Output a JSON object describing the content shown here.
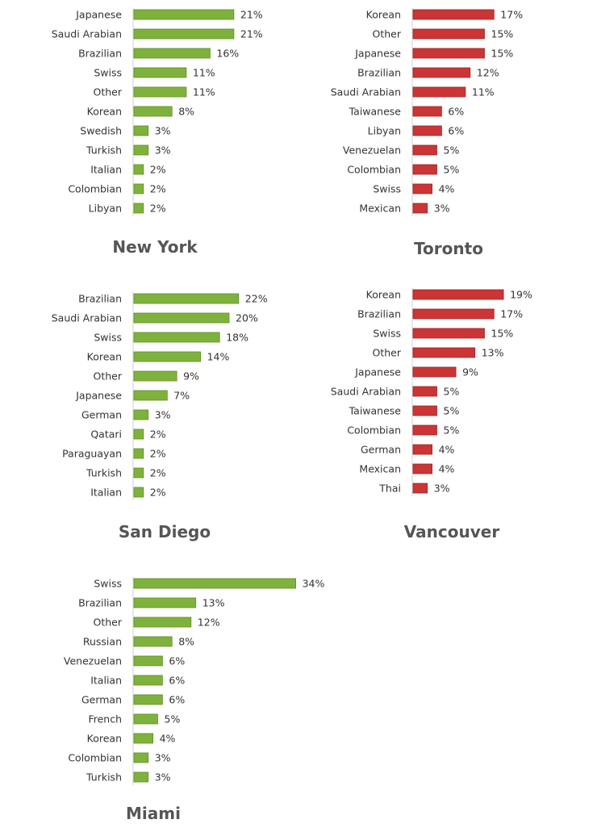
{
  "colors": {
    "green": "#7fb23c",
    "green_edge": "#5e8c28",
    "red": "#cc3535",
    "red_edge": "#9e2424"
  },
  "chart_data": [
    {
      "type": "bar",
      "title": "New York",
      "color": "green",
      "categories": [
        "Japanese",
        "Saudi Arabian",
        "Brazilian",
        "Swiss",
        "Other",
        "Korean",
        "Swedish",
        "Turkish",
        "Italian",
        "Colombian",
        "Libyan"
      ],
      "values": [
        21,
        21,
        16,
        11,
        11,
        8,
        3,
        3,
        2,
        2,
        2
      ],
      "value_labels": [
        "21%",
        "21%",
        "16%",
        "11%",
        "11%",
        "8%",
        "3%",
        "3%",
        "2%",
        "2%",
        "2%"
      ]
    },
    {
      "type": "bar",
      "title": "Toronto",
      "color": "red",
      "categories": [
        "Korean",
        "Other",
        "Japanese",
        "Brazilian",
        "Saudi Arabian",
        "Taiwanese",
        "Libyan",
        "Venezuelan",
        "Colombian",
        "Swiss",
        "Mexican"
      ],
      "values": [
        17,
        15,
        15,
        12,
        11,
        6,
        6,
        5,
        5,
        4,
        3
      ],
      "value_labels": [
        "17%",
        "15%",
        "15%",
        "12%",
        "11%",
        "6%",
        "6%",
        "5%",
        "5%",
        "4%",
        "3%"
      ]
    },
    {
      "type": "bar",
      "title": "San Diego",
      "color": "green",
      "categories": [
        "Brazilian",
        "Saudi Arabian",
        "Swiss",
        "Korean",
        "Other",
        "Japanese",
        "German",
        "Qatari",
        "Paraguayan",
        "Turkish",
        "Italian"
      ],
      "values": [
        22,
        20,
        18,
        14,
        9,
        7,
        3,
        2,
        2,
        2,
        2
      ],
      "value_labels": [
        "22%",
        "20%",
        "18%",
        "14%",
        "9%",
        "7%",
        "3%",
        "2%",
        "2%",
        "2%",
        "2%"
      ]
    },
    {
      "type": "bar",
      "title": "Vancouver",
      "color": "red",
      "categories": [
        "Korean",
        "Brazilian",
        "Swiss",
        "Other",
        "Japanese",
        "Saudi Arabian",
        "Taiwanese",
        "Colombian",
        "German",
        "Mexican",
        "Thai"
      ],
      "values": [
        19,
        17,
        15,
        13,
        9,
        5,
        5,
        5,
        4,
        4,
        3
      ],
      "value_labels": [
        "19%",
        "17%",
        "15%",
        "13%",
        "9%",
        "5%",
        "5%",
        "5%",
        "4%",
        "4%",
        "3%"
      ]
    },
    {
      "type": "bar",
      "title": "Miami",
      "color": "green",
      "categories": [
        "Swiss",
        "Brazilian",
        "Other",
        "Russian",
        "Venezuelan",
        "Italian",
        "German",
        "French",
        "Korean",
        "Colombian",
        "Turkish"
      ],
      "values": [
        34,
        13,
        12,
        8,
        6,
        6,
        6,
        5,
        4,
        3,
        3
      ],
      "value_labels": [
        "34%",
        "13%",
        "12%",
        "8%",
        "6%",
        "6%",
        "6%",
        "5%",
        "4%",
        "3%",
        "3%"
      ]
    }
  ]
}
